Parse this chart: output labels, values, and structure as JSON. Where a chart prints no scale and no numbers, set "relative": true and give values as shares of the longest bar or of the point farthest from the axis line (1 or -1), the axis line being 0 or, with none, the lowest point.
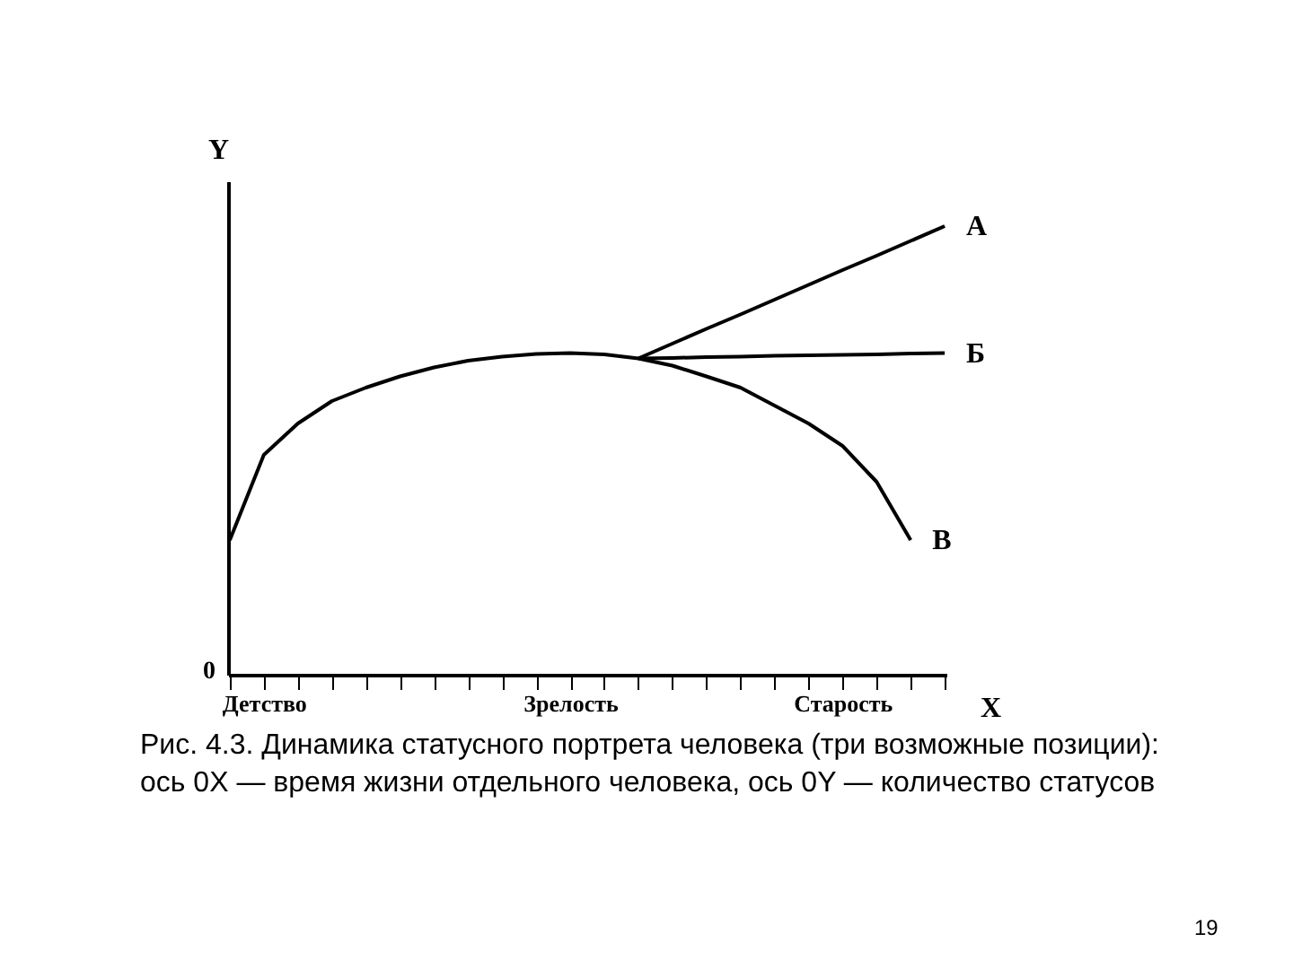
{
  "chart_data": {
    "type": "line",
    "relative": true,
    "xlabel": "X",
    "ylabel": "Y",
    "categories": [
      null,
      "Детство",
      null,
      null,
      null,
      null,
      null,
      null,
      null,
      null,
      "Зрелость",
      null,
      null,
      null,
      null,
      null,
      null,
      null,
      "Старость",
      null,
      null,
      null
    ],
    "series": [
      {
        "name": "В",
        "color": "#000000",
        "values": [
          0.3,
          0.49,
          0.56,
          0.61,
          0.64,
          0.665,
          0.685,
          0.7,
          0.709,
          0.715,
          0.717,
          0.714,
          0.705,
          0.689,
          0.665,
          0.64,
          0.6,
          0.56,
          0.51,
          0.43,
          0.3,
          null
        ]
      },
      {
        "name": "А",
        "color": "#000000",
        "values": [
          null,
          null,
          null,
          null,
          null,
          null,
          null,
          null,
          null,
          null,
          null,
          null,
          0.705,
          0.738,
          0.771,
          0.803,
          0.836,
          0.869,
          0.902,
          0.934,
          0.967,
          1.0
        ]
      },
      {
        "name": "Б",
        "color": "#000000",
        "values": [
          null,
          null,
          null,
          null,
          null,
          null,
          null,
          null,
          null,
          null,
          null,
          null,
          0.705,
          0.706,
          0.708,
          0.709,
          0.711,
          0.712,
          0.713,
          0.714,
          0.716,
          0.717
        ]
      }
    ],
    "marker": "none",
    "line_style": "solid",
    "grid": false,
    "legend": false,
    "annotations": [
      "0",
      "Рис. 4.3. Динамика статусного портрета человека (три возможные позиции): ось 0X — время жизни отдельного человека, ось 0Y — количество статусов",
      "19"
    ]
  }
}
